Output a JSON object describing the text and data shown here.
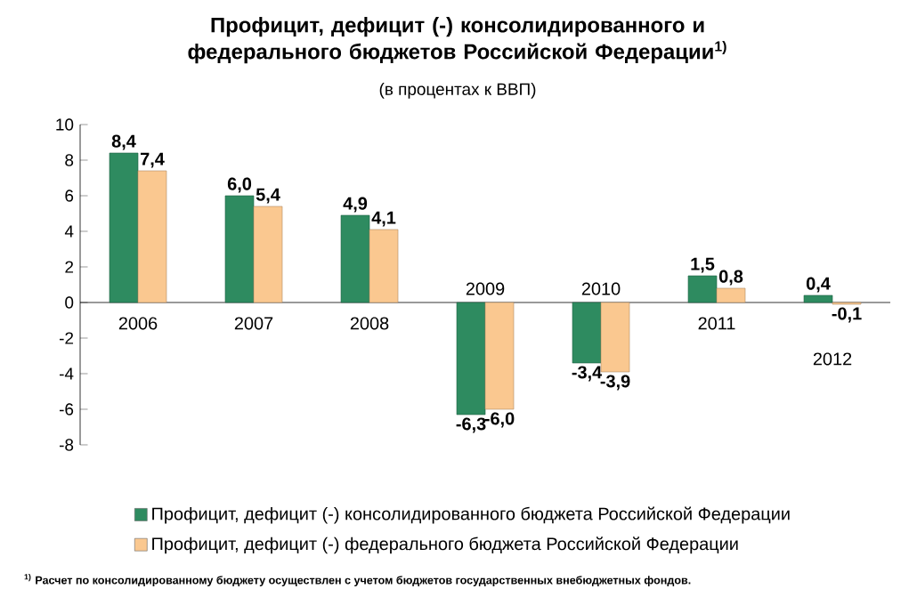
{
  "chart_data": {
    "type": "bar",
    "title": "Профицит, дефицит (-) консолидированного и федерального бюджетов Российской Федерации$^{1)}$",
    "subtitle": "(в процентах к ВВП)",
    "categories": [
      "2006",
      "2007",
      "2008",
      "2009",
      "2010",
      "2011",
      "2012"
    ],
    "series": [
      {
        "name": "Профицит, дефицит (-) консолидированного бюджета Российской Федерации",
        "color": "#2e8b60",
        "values": [
          8.4,
          6.0,
          4.9,
          -6.3,
          -3.4,
          1.5,
          0.4
        ],
        "value_labels": [
          "8,4",
          "6,0",
          "4,9",
          "-6,3",
          "-3,4",
          "1,5",
          "0,4"
        ]
      },
      {
        "name": "Профицит, дефицит (-) федерального бюджета Российской Федерации",
        "color": "#fac890",
        "values": [
          7.4,
          5.4,
          4.1,
          -6.0,
          -3.9,
          0.8,
          -0.1
        ],
        "value_labels": [
          "7,4",
          "5,4",
          "4,1",
          "-6,0",
          "-3,9",
          "0,8",
          "-0,1"
        ]
      }
    ],
    "ylim": [
      -8,
      10
    ],
    "yticks": [
      -8,
      -6,
      -4,
      -2,
      0,
      2,
      4,
      6,
      8,
      10
    ],
    "grid": false,
    "legend": "bottom",
    "annotations": [
      "$^{1)}$ Расчет по консолидированному бюджету осуществлен с учетом бюджетов государственных внебюджетных фондов."
    ]
  }
}
